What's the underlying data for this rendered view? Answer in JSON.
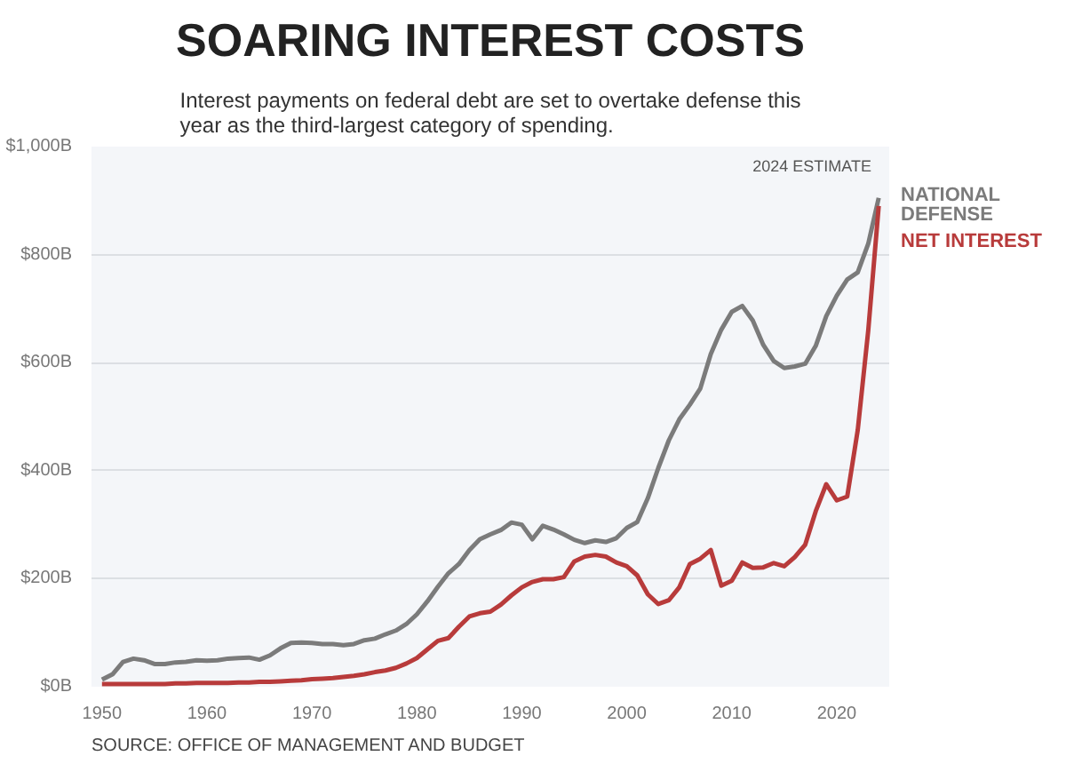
{
  "chart_data": {
    "type": "line",
    "title": "SOARING INTEREST COSTS",
    "subtitle": "Interest payments on federal debt are set to overtake defense this year as the third-largest category of spending.",
    "x": [
      1950,
      1951,
      1952,
      1953,
      1954,
      1955,
      1956,
      1957,
      1958,
      1959,
      1960,
      1961,
      1962,
      1963,
      1964,
      1965,
      1966,
      1967,
      1968,
      1969,
      1970,
      1971,
      1972,
      1973,
      1974,
      1975,
      1976,
      1977,
      1978,
      1979,
      1980,
      1981,
      1982,
      1983,
      1984,
      1985,
      1986,
      1987,
      1988,
      1989,
      1990,
      1991,
      1992,
      1993,
      1994,
      1995,
      1996,
      1997,
      1998,
      1999,
      2000,
      2001,
      2002,
      2003,
      2004,
      2005,
      2006,
      2007,
      2008,
      2009,
      2010,
      2011,
      2012,
      2013,
      2014,
      2015,
      2016,
      2017,
      2018,
      2019,
      2020,
      2021,
      2022,
      2023,
      2024
    ],
    "series": [
      {
        "name": "NATIONAL DEFENSE",
        "color": "#7b7b7b",
        "values": [
          13,
          23,
          46,
          52,
          49,
          42,
          42,
          45,
          46,
          49,
          48,
          49,
          52,
          53,
          54,
          50,
          58,
          71,
          81,
          82,
          81,
          79,
          79,
          77,
          79,
          86,
          89,
          97,
          104,
          116,
          134,
          158,
          185,
          210,
          227,
          253,
          273,
          282,
          290,
          304,
          300,
          273,
          298,
          291,
          282,
          272,
          266,
          271,
          268,
          275,
          294,
          305,
          349,
          405,
          456,
          495,
          522,
          552,
          616,
          661,
          694,
          705,
          678,
          633,
          603,
          590,
          593,
          598,
          631,
          686,
          724,
          754,
          767,
          820,
          905
        ]
      },
      {
        "name": "NET INTEREST",
        "color": "#b83b3b",
        "values": [
          5,
          5,
          5,
          5,
          5,
          5,
          5,
          6,
          6,
          7,
          7,
          7,
          7,
          8,
          8,
          9,
          9,
          10,
          11,
          12,
          14,
          15,
          16,
          18,
          20,
          23,
          27,
          30,
          35,
          43,
          53,
          69,
          85,
          90,
          111,
          130,
          136,
          139,
          152,
          169,
          184,
          194,
          199,
          199,
          203,
          232,
          241,
          244,
          241,
          230,
          223,
          206,
          171,
          153,
          160,
          184,
          227,
          237,
          253,
          187,
          196,
          230,
          220,
          221,
          229,
          223,
          240,
          263,
          325,
          375,
          345,
          352,
          475,
          659,
          890
        ]
      }
    ],
    "xlim": [
      1949,
      2025
    ],
    "xticks": [
      1950,
      1960,
      1970,
      1980,
      1990,
      2000,
      2010,
      2020
    ],
    "ylim": [
      0,
      1000
    ],
    "yticks": [
      {
        "value": 0,
        "label": "$0B"
      },
      {
        "value": 200,
        "label": "$200B"
      },
      {
        "value": 400,
        "label": "$400B"
      },
      {
        "value": 600,
        "label": "$600B"
      },
      {
        "value": 800,
        "label": "$800B"
      },
      {
        "value": 1000,
        "label": "$1,000B"
      }
    ],
    "grid": "y",
    "annotations": [
      "2024 ESTIMATE",
      "SOURCE: OFFICE OF MANAGEMENT AND BUDGET"
    ]
  }
}
